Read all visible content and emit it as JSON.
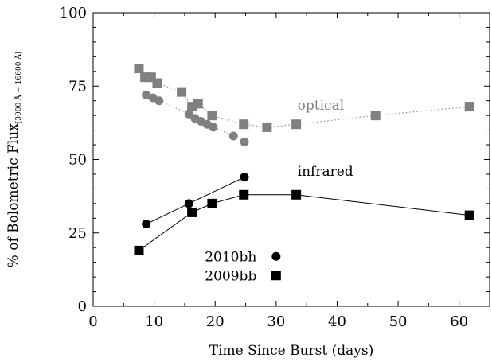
{
  "chart_data": {
    "type": "scatter",
    "xlabel": "Time Since Burst (days)",
    "ylabel": {
      "main": "% of Bolometric Flux",
      "subscript": "[3000 Å → 16600 Å]"
    },
    "xlim": [
      0,
      65
    ],
    "ylim": [
      0,
      100
    ],
    "xticks": [
      0,
      10,
      20,
      30,
      40,
      50,
      60
    ],
    "yticks": [
      0,
      25,
      50,
      75,
      100
    ],
    "grid": false,
    "annotations": {
      "optical": "optical",
      "infrared": "infrared"
    },
    "legend": {
      "placement": "bottom-center",
      "entries": [
        {
          "label": "2010bh",
          "marker": "circle"
        },
        {
          "label": "2009bb",
          "marker": "square"
        }
      ]
    },
    "colors": {
      "optical": "#808080",
      "infrared": "#000000"
    },
    "series": [
      {
        "name": "2009bb",
        "band": "optical",
        "marker": "square",
        "line": "dotted",
        "points": [
          [
            7.5,
            81
          ],
          [
            8.5,
            78
          ],
          [
            9.5,
            78
          ],
          [
            10.5,
            76
          ],
          [
            14.5,
            73
          ],
          [
            16.2,
            68
          ],
          [
            17.2,
            69
          ],
          [
            19.5,
            65
          ],
          [
            24.7,
            62
          ],
          [
            28.5,
            61
          ],
          [
            33.3,
            62
          ],
          [
            46.3,
            65
          ],
          [
            61.7,
            68
          ]
        ]
      },
      {
        "name": "2010bh",
        "band": "optical",
        "marker": "circle",
        "line": "dotted",
        "points": [
          [
            8.7,
            72
          ],
          [
            9.8,
            71
          ],
          [
            10.8,
            70
          ],
          [
            15.7,
            65.5
          ],
          [
            16.7,
            64
          ],
          [
            17.7,
            63
          ],
          [
            18.7,
            62
          ],
          [
            19.7,
            61
          ],
          [
            23.0,
            58
          ],
          [
            24.8,
            56
          ]
        ]
      },
      {
        "name": "2009bb",
        "band": "infrared",
        "marker": "square",
        "line": "solid",
        "points": [
          [
            7.5,
            19
          ],
          [
            16.2,
            32
          ],
          [
            19.5,
            35
          ],
          [
            24.7,
            38
          ],
          [
            33.3,
            38
          ],
          [
            61.7,
            31
          ]
        ]
      },
      {
        "name": "2010bh",
        "band": "infrared",
        "marker": "circle",
        "line": "solid",
        "points": [
          [
            8.7,
            28
          ],
          [
            15.7,
            35
          ],
          [
            24.8,
            44
          ]
        ]
      }
    ]
  }
}
